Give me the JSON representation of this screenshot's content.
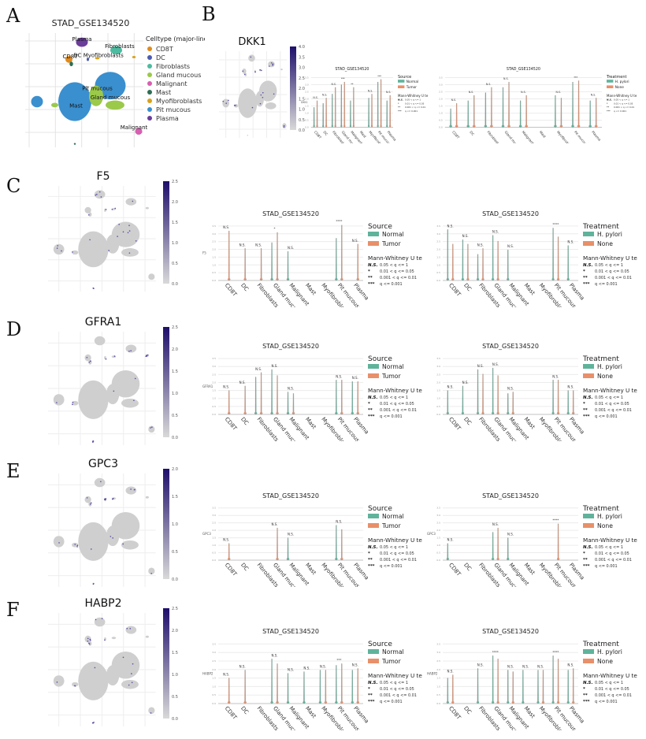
{
  "letters": [
    "A",
    "B",
    "C",
    "D",
    "E",
    "F"
  ],
  "celltype_umap": {
    "title": "STAD_GSE134520",
    "legend_title": "Celltype (major-lineage)",
    "types": [
      {
        "name": "CD8T",
        "color": "#e08a1e"
      },
      {
        "name": "DC",
        "color": "#4b5cb0"
      },
      {
        "name": "Fibroblasts",
        "color": "#4dbba0"
      },
      {
        "name": "Gland mucous",
        "color": "#9bc94a"
      },
      {
        "name": "Malignant",
        "color": "#d75fb0"
      },
      {
        "name": "Mast",
        "color": "#2e6e55"
      },
      {
        "name": "Myofibroblasts",
        "color": "#d9a21c"
      },
      {
        "name": "Pit mucous",
        "color": "#3a8fcf"
      },
      {
        "name": "Plasma",
        "color": "#6a3d9a"
      }
    ]
  },
  "chart_data": [
    {
      "type": "scatter",
      "gene": "DKK1",
      "colorbar_ticks": [
        "0.0",
        "0.5",
        "1.0",
        "1.5",
        "2.0",
        "2.5",
        "3.0",
        "3.5",
        "4.0"
      ],
      "violins": [
        {
          "type": "violin",
          "title": "STAD_GSE134520",
          "ylabel": "DKK1",
          "legend_title": "Source",
          "series": [
            {
              "name": "Normal",
              "color": "#5fb39b"
            },
            {
              "name": "Tumor",
              "color": "#e8906a"
            }
          ],
          "categories": [
            "CD8T",
            "DC",
            "Fibroblasts",
            "Gland mucous",
            "Malignant",
            "Mast",
            "Myofibroblasts",
            "Pit mucous",
            "Plasma"
          ],
          "max": [
            [
              1.5,
              2.0
            ],
            [
              1.8,
              2.2
            ],
            [
              2.5,
              3.0
            ],
            [
              3.2,
              3.4
            ],
            [
              2.0,
              3.0
            ],
            [
              0,
              0
            ],
            [
              2.2,
              2.5
            ],
            [
              3.4,
              3.6
            ],
            [
              2.0,
              2.4
            ]
          ],
          "significance": [
            "N.S.",
            "N.S.",
            "N.S.",
            "***",
            "**",
            "",
            "N.S.",
            "***",
            "N.S."
          ]
        },
        {
          "type": "violin",
          "title": "STAD_GSE134520",
          "ylabel": "",
          "legend_title": "Treatment",
          "series": [
            {
              "name": "H. pylori",
              "color": "#5fb39b"
            },
            {
              "name": "None",
              "color": "#e8906a"
            }
          ],
          "categories": [
            "CD8T",
            "DC",
            "Fibroblasts",
            "Gland mucous",
            "Malignant",
            "Mast",
            "Myofibroblasts",
            "Pit mucous",
            "Plasma"
          ],
          "max": [
            [
              1.4,
              1.8
            ],
            [
              2.0,
              2.4
            ],
            [
              2.6,
              3.0
            ],
            [
              3.0,
              3.4
            ],
            [
              2.0,
              2.4
            ],
            [
              0,
              0
            ],
            [
              2.4,
              2.2
            ],
            [
              3.4,
              3.5
            ],
            [
              2.0,
              2.2
            ]
          ],
          "significance": [
            "N.S.",
            "N.S.",
            "N.S.",
            "N.S.",
            "N.S.",
            "",
            "N.S.",
            "***",
            "N.S."
          ]
        }
      ]
    },
    {
      "type": "scatter",
      "gene": "F5",
      "colorbar_ticks": [
        "0.0",
        "0.5",
        "1.0",
        "1.5",
        "2.0",
        "2.5"
      ],
      "violins": [
        {
          "type": "violin",
          "title": "STAD_GSE134520",
          "ylabel": "F5",
          "legend_title": "Source",
          "series": [
            {
              "name": "Normal",
              "color": "#5fb39b"
            },
            {
              "name": "Tumor",
              "color": "#e8906a"
            }
          ],
          "categories": [
            "CD8T",
            "DC",
            "Fibroblasts",
            "Gland mucous",
            "Malignant",
            "Mast",
            "Myofibroblasts",
            "Pit mucous",
            "Plasma"
          ],
          "max": [
            [
              0,
              3.4
            ],
            [
              0,
              2.2
            ],
            [
              0,
              2.2
            ],
            [
              2.6,
              3.3
            ],
            [
              2.0,
              0
            ],
            [
              0,
              0
            ],
            [
              0,
              0
            ],
            [
              2.9,
              3.8
            ],
            [
              0,
              2.5
            ]
          ],
          "significance": [
            "N.S.",
            "N.S.",
            "N.S.",
            "*",
            "N.S.",
            "",
            "",
            "****",
            "N.S."
          ]
        },
        {
          "type": "violin",
          "title": "STAD_GSE134520",
          "ylabel": "",
          "legend_title": "Treatment",
          "series": [
            {
              "name": "H. pylori",
              "color": "#5fb39b"
            },
            {
              "name": "None",
              "color": "#e8906a"
            }
          ],
          "categories": [
            "CD8T",
            "DC",
            "Fibroblasts",
            "Gland mucous",
            "Malignant",
            "Mast",
            "Myofibroblasts",
            "Pit mucous",
            "Plasma"
          ],
          "max": [
            [
              3.5,
              2.5
            ],
            [
              2.8,
              2.5
            ],
            [
              1.8,
              2.2
            ],
            [
              3.1,
              2.7
            ],
            [
              2.1,
              0
            ],
            [
              0,
              0
            ],
            [
              0,
              0
            ],
            [
              3.6,
              3.0
            ],
            [
              2.4,
              0
            ]
          ],
          "significance": [
            "N.S.",
            "N.S.",
            "N.S.",
            "N.S.",
            "N.S.",
            "",
            "",
            "****",
            "N.S."
          ]
        }
      ]
    },
    {
      "type": "scatter",
      "gene": "GFRA1",
      "colorbar_ticks": [
        "0.0",
        "0.5",
        "1.0",
        "1.5",
        "2.0",
        "2.5"
      ],
      "violins": [
        {
          "type": "violin",
          "title": "STAD_GSE134520",
          "ylabel": "GFRA1",
          "legend_title": "Source",
          "series": [
            {
              "name": "Normal",
              "color": "#5fb39b"
            },
            {
              "name": "Tumor",
              "color": "#e8906a"
            }
          ],
          "categories": [
            "CD8T",
            "DC",
            "Fibroblasts",
            "Gland mucous",
            "Malignant",
            "Mast",
            "Myofibroblasts",
            "Pit mucous",
            "Plasma"
          ],
          "max": [
            [
              0,
              1.6
            ],
            [
              0,
              1.9
            ],
            [
              2.5,
              2.8
            ],
            [
              3.0,
              2.6
            ],
            [
              1.5,
              1.4
            ],
            [
              0,
              0
            ],
            [
              0,
              0
            ],
            [
              2.3,
              2.3
            ],
            [
              2.2,
              2.2
            ]
          ],
          "significance": [
            "N.S.",
            "N.S.",
            "N.S.",
            "N.S.",
            "N.S.",
            "",
            "",
            "N.S.",
            "N.S."
          ]
        },
        {
          "type": "violin",
          "title": "STAD_GSE134520",
          "ylabel": "",
          "legend_title": "Treatment",
          "series": [
            {
              "name": "H. pylori",
              "color": "#5fb39b"
            },
            {
              "name": "None",
              "color": "#e8906a"
            }
          ],
          "categories": [
            "CD8T",
            "DC",
            "Fibroblasts",
            "Gland mucous",
            "Malignant",
            "Mast",
            "Myofibroblasts",
            "Pit mucous",
            "Plasma"
          ],
          "max": [
            [
              1.6,
              0
            ],
            [
              1.9,
              0
            ],
            [
              3.0,
              2.7
            ],
            [
              3.1,
              2.6
            ],
            [
              1.4,
              1.5
            ],
            [
              0,
              0
            ],
            [
              0,
              0
            ],
            [
              2.3,
              2.3
            ],
            [
              1.6,
              1.6
            ]
          ],
          "significance": [
            "N.S.",
            "N.S.",
            "N.S.",
            "N.S.",
            "N.S.",
            "",
            "",
            "N.S.",
            "N.S."
          ]
        }
      ]
    },
    {
      "type": "scatter",
      "gene": "GPC3",
      "colorbar_ticks": [
        "0.0",
        "0.5",
        "1.0",
        "1.5",
        "2.0"
      ],
      "violins": [
        {
          "type": "violin",
          "title": "STAD_GSE134520",
          "ylabel": "GPC3",
          "legend_title": "Source",
          "series": [
            {
              "name": "Normal",
              "color": "#5fb39b"
            },
            {
              "name": "Tumor",
              "color": "#e8906a"
            }
          ],
          "categories": [
            "CD8T",
            "DC",
            "Fibroblasts",
            "Gland mucous",
            "Malignant",
            "Mast",
            "Myofibroblasts",
            "Pit mucous",
            "Plasma"
          ],
          "max": [
            [
              0,
              1.2
            ],
            [
              0,
              0
            ],
            [
              0,
              0
            ],
            [
              0,
              2.3
            ],
            [
              1.6,
              0
            ],
            [
              0,
              0
            ],
            [
              0,
              0
            ],
            [
              2.5,
              2.2
            ],
            [
              0,
              0
            ]
          ],
          "significance": [
            "N.S.",
            "",
            "",
            "N.S.",
            "N.S.",
            "",
            "",
            "N.S.",
            ""
          ]
        },
        {
          "type": "violin",
          "title": "STAD_GSE134520",
          "ylabel": "GPC3",
          "legend_title": "Treatment",
          "series": [
            {
              "name": "H. pylori",
              "color": "#5fb39b"
            },
            {
              "name": "None",
              "color": "#e8906a"
            }
          ],
          "categories": [
            "CD8T",
            "DC",
            "Fibroblasts",
            "Gland mucous",
            "Malignant",
            "Mast",
            "Myofibroblasts",
            "Pit mucous",
            "Plasma"
          ],
          "max": [
            [
              1.2,
              0
            ],
            [
              0,
              0
            ],
            [
              0,
              0
            ],
            [
              2.0,
              2.3
            ],
            [
              1.6,
              0
            ],
            [
              0,
              0
            ],
            [
              0,
              0
            ],
            [
              0,
              2.6
            ],
            [
              0,
              0
            ]
          ],
          "significance": [
            "N.S.",
            "",
            "",
            "N.S.",
            "N.S.",
            "",
            "",
            "****",
            ""
          ]
        }
      ]
    },
    {
      "type": "scatter",
      "gene": "HABP2",
      "colorbar_ticks": [
        "0.0",
        "0.5",
        "1.0",
        "1.5",
        "2.0",
        "2.5"
      ],
      "violins": [
        {
          "type": "violin",
          "title": "STAD_GSE134520",
          "ylabel": "HABP2",
          "legend_title": "Source",
          "series": [
            {
              "name": "Normal",
              "color": "#5fb39b"
            },
            {
              "name": "Tumor",
              "color": "#e8906a"
            }
          ],
          "categories": [
            "CD8T",
            "DC",
            "Fibroblasts",
            "Gland mucous",
            "Malignant",
            "Mast",
            "Myofibroblasts",
            "Pit mucous",
            "Plasma"
          ],
          "max": [
            [
              0,
              1.6
            ],
            [
              0,
              2.1
            ],
            [
              0,
              0
            ],
            [
              2.8,
              2.5
            ],
            [
              1.9,
              0
            ],
            [
              2.0,
              0
            ],
            [
              2.1,
              2.1
            ],
            [
              2.4,
              2.5
            ],
            [
              2.1,
              2.2
            ]
          ],
          "significance": [
            "N.S.",
            "N.S.",
            "",
            "N.S.",
            "N.S.",
            "N.S.",
            "N.S.",
            "***",
            "N.S."
          ]
        },
        {
          "type": "violin",
          "title": "STAD_GSE134520",
          "ylabel": "HABP2",
          "legend_title": "Treatment",
          "series": [
            {
              "name": "H. pylori",
              "color": "#5fb39b"
            },
            {
              "name": "None",
              "color": "#e8906a"
            }
          ],
          "categories": [
            "CD8T",
            "DC",
            "Fibroblasts",
            "Gland mucous",
            "Malignant",
            "Mast",
            "Myofibroblasts",
            "Pit mucous",
            "Plasma"
          ],
          "max": [
            [
              1.6,
              1.8
            ],
            [
              0,
              0
            ],
            [
              2.2,
              0
            ],
            [
              3.0,
              2.8
            ],
            [
              2.1,
              2.0
            ],
            [
              2.1,
              0
            ],
            [
              2.1,
              2.1
            ],
            [
              3.0,
              2.8
            ],
            [
              2.1,
              2.2
            ]
          ],
          "significance": [
            "N.S.",
            "",
            "N.S.",
            "****",
            "N.S.",
            "N.S.",
            "N.S.",
            "****",
            "N.S."
          ]
        }
      ]
    }
  ],
  "stats_legend": {
    "title": "Mann-Whitney U te",
    "rows": [
      [
        "N.S.",
        "0.05 < q <= 1"
      ],
      [
        "*",
        "0.01 < q <= 0.05"
      ],
      [
        "**",
        "0.001 < q <= 0.01"
      ],
      [
        "***",
        "q <= 0.001"
      ]
    ]
  }
}
